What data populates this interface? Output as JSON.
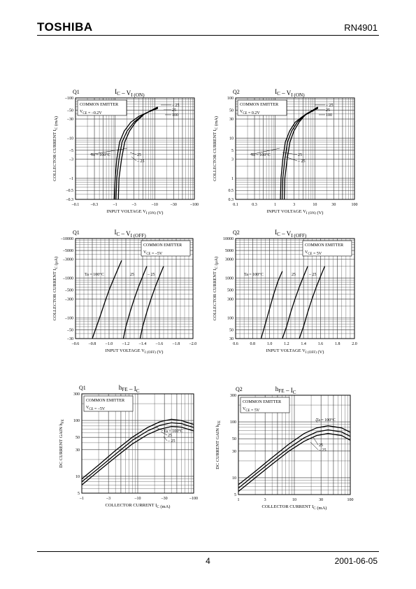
{
  "header": {
    "logo": "TOSHIBA",
    "part_number": "RN4901"
  },
  "footer": {
    "page": "4",
    "date": "2001-06-05"
  },
  "chart_data": [
    {
      "id": "q1-ic-vion",
      "type": "line",
      "device_label": "Q1",
      "title_main": "I",
      "title_sub": "C",
      "title_mid": " – V",
      "title_sub2": "I (ON)",
      "info": [
        "COMMON EMITTER",
        "V",
        "CE",
        " = –0.2V"
      ],
      "xlabel": "INPUT VOLTAGE  V",
      "xlabel_sub": "I (ON)",
      "xlabel_unit": "(V)",
      "ylabel": "COLLECTOR CURRENT  I",
      "ylabel_sub": "C",
      "ylabel_unit": "(mA)",
      "xscale": "log",
      "yscale": "log",
      "xlim": [
        0.1,
        100
      ],
      "ylim": [
        0.3,
        100
      ],
      "xticks": [
        0.1,
        0.3,
        1,
        3,
        10,
        30,
        100
      ],
      "xticklabels": [
        "–0.1",
        "–0.3",
        "–1",
        "–3",
        "–10",
        "–30",
        "–100"
      ],
      "yticks": [
        0.3,
        0.5,
        1,
        3,
        5,
        10,
        30,
        50,
        100
      ],
      "yticklabels": [
        "–0.3",
        "–0.5",
        "–1",
        "–3",
        "–5",
        "–10",
        "–30",
        "–50",
        "–100"
      ],
      "series": [
        {
          "name": "100",
          "x": [
            0.95,
            1.0,
            1.1,
            1.3,
            1.7,
            2.5,
            4,
            7,
            12
          ],
          "y": [
            0.3,
            1,
            3,
            8,
            15,
            25,
            35,
            45,
            55
          ]
        },
        {
          "name": "25",
          "x": [
            1.05,
            1.1,
            1.25,
            1.5,
            2,
            3,
            5,
            8,
            12
          ],
          "y": [
            0.3,
            1,
            3,
            8,
            15,
            25,
            38,
            48,
            58
          ]
        },
        {
          "name": "–25",
          "x": [
            1.2,
            1.25,
            1.45,
            1.75,
            2.3,
            3.3,
            5.5,
            8.5,
            12
          ],
          "y": [
            0.3,
            1,
            3,
            8,
            15,
            25,
            40,
            50,
            60
          ]
        }
      ],
      "label_upper": [
        "– 25",
        "25",
        "100"
      ],
      "label_lower": [
        "Ta = 100°C",
        "25",
        "– 25"
      ]
    },
    {
      "id": "q2-ic-vion",
      "type": "line",
      "device_label": "Q2",
      "title_main": "I",
      "title_sub": "C",
      "title_mid": " – V",
      "title_sub2": "I (ON)",
      "info": [
        "COMMON EMITTER",
        "V",
        "CE",
        " = 0.2V"
      ],
      "xlabel": "INPUT VOLTAGE  V",
      "xlabel_sub": "I (ON)",
      "xlabel_unit": "(V)",
      "ylabel": "COLLECTOR CURRENT  I",
      "ylabel_sub": "C",
      "ylabel_unit": "(mA)",
      "xscale": "log",
      "yscale": "log",
      "xlim": [
        0.1,
        100
      ],
      "ylim": [
        0.3,
        100
      ],
      "xticks": [
        0.1,
        0.3,
        1,
        3,
        10,
        30,
        100
      ],
      "xticklabels": [
        "0.1",
        "0.3",
        "1",
        "3",
        "10",
        "30",
        "100"
      ],
      "yticks": [
        0.3,
        0.5,
        1,
        3,
        5,
        10,
        30,
        50,
        100
      ],
      "yticklabels": [
        "0.3",
        "0.5",
        "1",
        "3",
        "5",
        "10",
        "30",
        "50",
        "100"
      ],
      "series": [
        {
          "name": "100",
          "x": [
            1.35,
            1.4,
            1.55,
            1.8,
            2.3,
            3.2,
            5,
            8,
            12
          ],
          "y": [
            0.3,
            1,
            3,
            8,
            15,
            25,
            35,
            45,
            55
          ]
        },
        {
          "name": "25",
          "x": [
            1.5,
            1.55,
            1.75,
            2.05,
            2.6,
            3.6,
            5.6,
            8.5,
            12
          ],
          "y": [
            0.3,
            1,
            3,
            8,
            15,
            25,
            38,
            48,
            58
          ]
        },
        {
          "name": "–25",
          "x": [
            1.7,
            1.75,
            2.0,
            2.35,
            2.95,
            4,
            6,
            9,
            12
          ],
          "y": [
            0.3,
            1,
            3,
            8,
            15,
            25,
            40,
            50,
            60
          ]
        }
      ],
      "label_upper": [
        "– 25",
        "25",
        "100"
      ],
      "label_lower": [
        "Ta = 100°C",
        "25",
        "– 25"
      ]
    },
    {
      "id": "q1-ic-voff",
      "type": "line",
      "device_label": "Q1",
      "title_main": "I",
      "title_sub": "C",
      "title_mid": " – V",
      "title_sub2": "I (OFF)",
      "info": [
        "COMMON EMITTER",
        "V",
        "CE",
        " = –5V"
      ],
      "xlabel": "INPUT VOLTAGE  V",
      "xlabel_sub": "I (OFF)",
      "xlabel_unit": "(V)",
      "ylabel": "COLLECTOR CURRENT  I",
      "ylabel_sub": "C",
      "ylabel_unit": "(μA)",
      "xscale": "linear",
      "yscale": "log",
      "xlim": [
        0.6,
        2.0
      ],
      "ylim": [
        30,
        10000
      ],
      "xticks": [
        0.6,
        0.8,
        1.0,
        1.2,
        1.4,
        1.6,
        1.8,
        2.0
      ],
      "xticklabels": [
        "–0.6",
        "–0.8",
        "–1.0",
        "–1.2",
        "–1.4",
        "–1.6",
        "–1.8",
        "–2.0"
      ],
      "yticks": [
        30,
        50,
        100,
        300,
        500,
        1000,
        3000,
        5000,
        10000
      ],
      "yticklabels": [
        "–30",
        "–50",
        "–100",
        "–300",
        "–500",
        "–1000",
        "–3000",
        "–5000",
        "–10000"
      ],
      "series": [
        {
          "name": "100",
          "x": [
            0.8,
            0.85,
            0.9,
            0.95,
            1.0,
            1.05,
            1.1,
            1.15
          ],
          "y": [
            30,
            60,
            120,
            250,
            500,
            900,
            1600,
            2800
          ]
        },
        {
          "name": "25",
          "x": [
            1.17,
            1.2,
            1.25,
            1.3,
            1.35,
            1.4,
            1.45
          ],
          "y": [
            30,
            60,
            140,
            300,
            600,
            1100,
            2000
          ]
        },
        {
          "name": "–25",
          "x": [
            1.37,
            1.4,
            1.45,
            1.5,
            1.55,
            1.6,
            1.65
          ],
          "y": [
            30,
            60,
            140,
            300,
            600,
            1100,
            2000
          ]
        }
      ],
      "label_lower": [
        "Ta = 100°C",
        "25",
        "– 25"
      ]
    },
    {
      "id": "q2-ic-voff",
      "type": "line",
      "device_label": "Q2",
      "title_main": "I",
      "title_sub": "C",
      "title_mid": " – V",
      "title_sub2": "I (OFF)",
      "info": [
        "COMMON EMITTER",
        "V",
        "CE",
        " = 5V"
      ],
      "xlabel": "INPUT VOLTAGE  V",
      "xlabel_sub": "I (OFF)",
      "xlabel_unit": "(V)",
      "ylabel": "COLLECTOR CURRENT  I",
      "ylabel_sub": "C",
      "ylabel_unit": "(μA)",
      "xscale": "linear",
      "yscale": "log",
      "xlim": [
        0.6,
        2.0
      ],
      "ylim": [
        30,
        10000
      ],
      "xticks": [
        0.6,
        0.8,
        1.0,
        1.2,
        1.4,
        1.6,
        1.8,
        2.0
      ],
      "xticklabels": [
        "0.6",
        "0.8",
        "1.0",
        "1.2",
        "1.4",
        "1.6",
        "1.8",
        "2.0"
      ],
      "yticks": [
        30,
        50,
        100,
        300,
        500,
        1000,
        3000,
        5000,
        10000
      ],
      "yticklabels": [
        "30",
        "50",
        "100",
        "300",
        "500",
        "1000",
        "3000",
        "5000",
        "10000"
      ],
      "series": [
        {
          "name": "100",
          "x": [
            0.9,
            0.95,
            1.0,
            1.05,
            1.1,
            1.15
          ],
          "y": [
            30,
            70,
            170,
            400,
            850,
            1500
          ]
        },
        {
          "name": "25",
          "x": [
            1.15,
            1.2,
            1.25,
            1.3,
            1.35,
            1.4,
            1.45
          ],
          "y": [
            30,
            60,
            140,
            300,
            600,
            1100,
            2000
          ]
        },
        {
          "name": "–25",
          "x": [
            1.35,
            1.4,
            1.45,
            1.5,
            1.55,
            1.6,
            1.65
          ],
          "y": [
            30,
            60,
            140,
            300,
            600,
            1100,
            2000
          ]
        }
      ],
      "label_lower": [
        "Ta = 100°C",
        "25",
        "– 25"
      ]
    },
    {
      "id": "q1-hfe-ic",
      "type": "line",
      "device_label": "Q1",
      "title_main": "h",
      "title_sub": "FE",
      "title_mid": " – I",
      "title_sub2": "C",
      "info": [
        "COMMON EMITTER",
        "V",
        "CE",
        " = –5V"
      ],
      "xlabel": "COLLECTOR CURRENT  I",
      "xlabel_sub": "C",
      "xlabel_unit": "(mA)",
      "ylabel": "DC CURRENT GAIN  h",
      "ylabel_sub": "FE",
      "ylabel_unit": "",
      "xscale": "log",
      "yscale": "log",
      "xlim": [
        1,
        100
      ],
      "ylim": [
        5,
        300
      ],
      "xticks": [
        1,
        3,
        10,
        30,
        100
      ],
      "xticklabels": [
        "–1",
        "–3",
        "–10",
        "–30",
        "–100"
      ],
      "yticks": [
        5,
        10,
        30,
        50,
        100,
        300
      ],
      "yticklabels": [
        "5",
        "10",
        "30",
        "50",
        "100",
        "300"
      ],
      "series": [
        {
          "name": "100",
          "x": [
            1,
            2,
            4,
            8,
            15,
            25,
            40,
            60,
            100
          ],
          "y": [
            9,
            16,
            29,
            50,
            75,
            95,
            105,
            100,
            85
          ]
        },
        {
          "name": "25",
          "x": [
            1,
            2,
            4,
            8,
            15,
            25,
            40,
            60,
            100
          ],
          "y": [
            8,
            14,
            25,
            44,
            65,
            82,
            91,
            88,
            75
          ]
        },
        {
          "name": "–25",
          "x": [
            1,
            2,
            4,
            8,
            15,
            25,
            40,
            60,
            100
          ],
          "y": [
            7,
            12.5,
            22,
            38,
            56,
            70,
            78,
            76,
            65
          ]
        }
      ],
      "label_upper": [
        "Ta = 100°C",
        "25",
        "– 25"
      ]
    },
    {
      "id": "q2-hfe-ic",
      "type": "line",
      "device_label": "Q2",
      "title_main": "h",
      "title_sub": "FE",
      "title_mid": " – I",
      "title_sub2": "C",
      "info": [
        "COMMON EMITTER",
        "V",
        "CE",
        " = 5V"
      ],
      "xlabel": "COLLECTOR CURRENT  I",
      "xlabel_sub": "C",
      "xlabel_unit": "(mA)",
      "ylabel": "DC CURRENT GAIN  h",
      "ylabel_sub": "FE",
      "ylabel_unit": "",
      "xscale": "log",
      "yscale": "log",
      "xlim": [
        1,
        100
      ],
      "ylim": [
        5,
        300
      ],
      "xticks": [
        1,
        3,
        10,
        30,
        100
      ],
      "xticklabels": [
        "1",
        "3",
        "10",
        "30",
        "100"
      ],
      "yticks": [
        5,
        10,
        30,
        50,
        100,
        300
      ],
      "yticklabels": [
        "5",
        "10",
        "30",
        "50",
        "100",
        "300"
      ],
      "series": [
        {
          "name": "100",
          "x": [
            1,
            2,
            4,
            8,
            15,
            25,
            40,
            70,
            100
          ],
          "y": [
            7.5,
            13,
            23,
            40,
            62,
            78,
            85,
            78,
            65
          ]
        },
        {
          "name": "25",
          "x": [
            1,
            2,
            4,
            8,
            15,
            25,
            40,
            70,
            100
          ],
          "y": [
            6.5,
            11.5,
            20,
            34,
            52,
            66,
            72,
            66,
            55
          ]
        },
        {
          "name": "–25",
          "x": [
            1,
            2,
            4,
            8,
            15,
            25,
            40,
            70,
            100
          ],
          "y": [
            5.7,
            10,
            17.5,
            30,
            45,
            57,
            62,
            57,
            47
          ]
        }
      ],
      "label_upper": [
        "Ta = 100°C",
        "25",
        "– 25"
      ]
    }
  ]
}
